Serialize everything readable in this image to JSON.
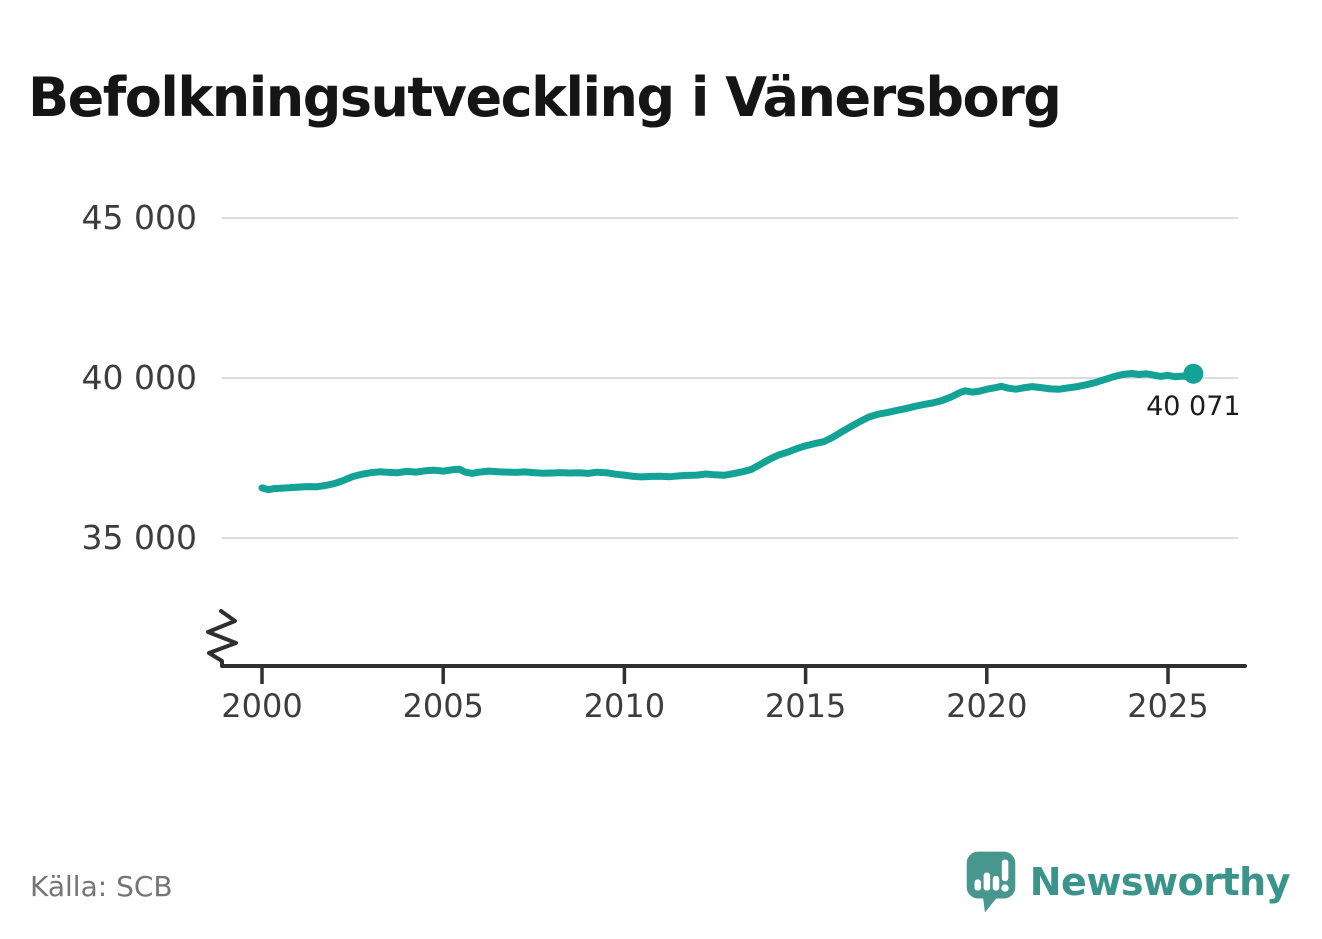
{
  "header": {
    "title": "Befolkningsutveckling i Vänersborg"
  },
  "footer": {
    "source": "Källa: SCB",
    "brand_name": "Newsworthy"
  },
  "colors": {
    "line": "#12a296",
    "grid": "#dcdcdc",
    "axis": "#2f2f2f",
    "tick_text": "#3d3d3d",
    "title_text": "#151515",
    "source_text": "#757575",
    "brand_teal": "#47978f"
  },
  "chart_data": {
    "type": "line",
    "title": "Befolkningsutveckling i Vänersborg",
    "xlabel": "",
    "ylabel": "",
    "grid": "horizontal",
    "legend": "none",
    "axis_break_bottom_left": true,
    "x_ticks": [
      2000,
      2005,
      2010,
      2015,
      2020,
      2025
    ],
    "y_ticks": [
      {
        "value": 45000,
        "label": "45 000"
      },
      {
        "value": 40000,
        "label": "40 000"
      },
      {
        "value": 35000,
        "label": "35 000"
      }
    ],
    "xlim": [
      1999.0,
      2027.2
    ],
    "ylim_displayed": [
      33400,
      47000
    ],
    "end_point": {
      "x": 2025.7,
      "value": 40071,
      "label": "40 071"
    },
    "series": [
      {
        "name": "Befolkning",
        "points": [
          [
            2000.0,
            36565
          ],
          [
            2000.17,
            36510
          ],
          [
            2000.33,
            36545
          ],
          [
            2000.5,
            36555
          ],
          [
            2000.75,
            36570
          ],
          [
            2001.0,
            36590
          ],
          [
            2001.25,
            36605
          ],
          [
            2001.5,
            36600
          ],
          [
            2001.75,
            36640
          ],
          [
            2002.0,
            36700
          ],
          [
            2002.25,
            36800
          ],
          [
            2002.5,
            36920
          ],
          [
            2002.75,
            36990
          ],
          [
            2003.0,
            37040
          ],
          [
            2003.25,
            37070
          ],
          [
            2003.5,
            37050
          ],
          [
            2003.75,
            37040
          ],
          [
            2004.0,
            37080
          ],
          [
            2004.25,
            37060
          ],
          [
            2004.5,
            37100
          ],
          [
            2004.75,
            37120
          ],
          [
            2005.0,
            37090
          ],
          [
            2005.25,
            37130
          ],
          [
            2005.45,
            37150
          ],
          [
            2005.6,
            37060
          ],
          [
            2005.8,
            37020
          ],
          [
            2006.0,
            37060
          ],
          [
            2006.25,
            37090
          ],
          [
            2006.5,
            37070
          ],
          [
            2006.75,
            37060
          ],
          [
            2007.0,
            37050
          ],
          [
            2007.25,
            37065
          ],
          [
            2007.5,
            37045
          ],
          [
            2007.75,
            37025
          ],
          [
            2008.0,
            37030
          ],
          [
            2008.25,
            37045
          ],
          [
            2008.5,
            37030
          ],
          [
            2008.75,
            37040
          ],
          [
            2009.0,
            37020
          ],
          [
            2009.25,
            37055
          ],
          [
            2009.5,
            37040
          ],
          [
            2009.75,
            36995
          ],
          [
            2010.0,
            36965
          ],
          [
            2010.25,
            36925
          ],
          [
            2010.5,
            36910
          ],
          [
            2010.75,
            36925
          ],
          [
            2011.0,
            36930
          ],
          [
            2011.25,
            36915
          ],
          [
            2011.5,
            36940
          ],
          [
            2011.75,
            36955
          ],
          [
            2012.0,
            36965
          ],
          [
            2012.25,
            37000
          ],
          [
            2012.5,
            36975
          ],
          [
            2012.75,
            36960
          ],
          [
            2013.0,
            37010
          ],
          [
            2013.25,
            37070
          ],
          [
            2013.5,
            37140
          ],
          [
            2013.75,
            37300
          ],
          [
            2014.0,
            37460
          ],
          [
            2014.25,
            37590
          ],
          [
            2014.5,
            37680
          ],
          [
            2014.75,
            37790
          ],
          [
            2015.0,
            37880
          ],
          [
            2015.25,
            37950
          ],
          [
            2015.5,
            38010
          ],
          [
            2015.75,
            38150
          ],
          [
            2016.0,
            38320
          ],
          [
            2016.25,
            38480
          ],
          [
            2016.5,
            38640
          ],
          [
            2016.75,
            38780
          ],
          [
            2017.0,
            38870
          ],
          [
            2017.25,
            38920
          ],
          [
            2017.5,
            38980
          ],
          [
            2017.75,
            39040
          ],
          [
            2018.0,
            39110
          ],
          [
            2018.25,
            39170
          ],
          [
            2018.5,
            39220
          ],
          [
            2018.75,
            39290
          ],
          [
            2019.0,
            39400
          ],
          [
            2019.25,
            39540
          ],
          [
            2019.4,
            39600
          ],
          [
            2019.6,
            39560
          ],
          [
            2019.8,
            39590
          ],
          [
            2020.0,
            39650
          ],
          [
            2020.25,
            39700
          ],
          [
            2020.4,
            39740
          ],
          [
            2020.6,
            39680
          ],
          [
            2020.8,
            39650
          ],
          [
            2021.0,
            39690
          ],
          [
            2021.25,
            39730
          ],
          [
            2021.5,
            39700
          ],
          [
            2021.75,
            39660
          ],
          [
            2022.0,
            39650
          ],
          [
            2022.25,
            39690
          ],
          [
            2022.5,
            39730
          ],
          [
            2022.75,
            39790
          ],
          [
            2023.0,
            39860
          ],
          [
            2023.25,
            39950
          ],
          [
            2023.5,
            40040
          ],
          [
            2023.75,
            40110
          ],
          [
            2024.0,
            40140
          ],
          [
            2024.2,
            40110
          ],
          [
            2024.4,
            40130
          ],
          [
            2024.6,
            40090
          ],
          [
            2024.8,
            40050
          ],
          [
            2025.0,
            40080
          ],
          [
            2025.2,
            40040
          ],
          [
            2025.4,
            40060
          ],
          [
            2025.6,
            40030
          ],
          [
            2025.7,
            40071
          ]
        ]
      }
    ]
  }
}
